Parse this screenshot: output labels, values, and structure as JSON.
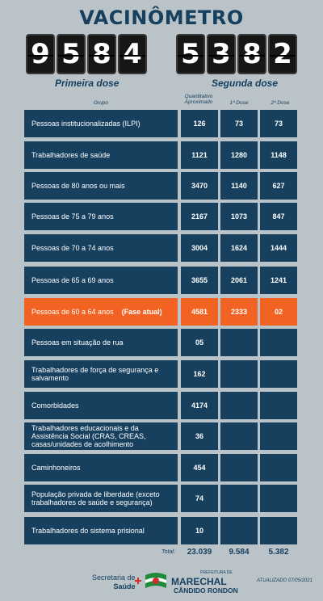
{
  "title": "VACINÔMETRO",
  "first_dose": {
    "digits": [
      "9",
      "5",
      "8",
      "4"
    ],
    "label": "Primeira dose"
  },
  "second_dose": {
    "digits": [
      "5",
      "3",
      "8",
      "2"
    ],
    "label": "Segunda dose"
  },
  "headers": {
    "group": "Grupo",
    "quantity": "Quantitativo Aproximado",
    "dose1": "1ª Dose",
    "dose2": "2ª Dose"
  },
  "rows": [
    {
      "group": "Pessoas institucionalizadas (ILPI)",
      "quantity": "126",
      "dose1": "73",
      "dose2": "73"
    },
    {
      "group": "Trabalhadores de saúde",
      "quantity": "1121",
      "dose1": "1280",
      "dose2": "1148"
    },
    {
      "group": "Pessoas de 80 anos ou mais",
      "quantity": "3470",
      "dose1": "1140",
      "dose2": "627"
    },
    {
      "group": "Pessoas de 75 a 79 anos",
      "quantity": "2167",
      "dose1": "1073",
      "dose2": "847"
    },
    {
      "group": "Pessoas de 70 a 74 anos",
      "quantity": "3004",
      "dose1": "1624",
      "dose2": "1444"
    },
    {
      "group": "Pessoas de 65 a 69 anos",
      "quantity": "3655",
      "dose1": "2061",
      "dose2": "1241"
    },
    {
      "group": "Pessoas de 60 a 64 anos",
      "fase": "(Fase atual)",
      "quantity": "4581",
      "dose1": "2333",
      "dose2": "02",
      "active": true
    },
    {
      "group": "Pessoas em situação de rua",
      "quantity": "05",
      "dose1": "",
      "dose2": ""
    },
    {
      "group": "Trabalhadores de força de segurança e salvamento",
      "quantity": "162",
      "dose1": "",
      "dose2": ""
    },
    {
      "group": "Comorbidades",
      "quantity": "4174",
      "dose1": "",
      "dose2": ""
    },
    {
      "group": "Trabalhadores educacionais e da Assistência Social (CRAS, CREAS, casas/unidades de acolhimento",
      "quantity": "36",
      "dose1": "",
      "dose2": ""
    },
    {
      "group": "Caminhoneiros",
      "quantity": "454",
      "dose1": "",
      "dose2": ""
    },
    {
      "group": "População privada de liberdade (exceto trabalhadores de saúde e segurança)",
      "quantity": "74",
      "dose1": "",
      "dose2": ""
    },
    {
      "group": "Trabalhadores do sistema prisional",
      "quantity": "10",
      "dose1": "",
      "dose2": ""
    }
  ],
  "totals": {
    "label": "Total:",
    "quantity": "23.039",
    "dose1": "9.584",
    "dose2": "5.382"
  },
  "footer": {
    "secretaria": "Secretaria de",
    "saude": "Saúde",
    "prefeitura": "PREFEITURA DE",
    "city": "MARECHAL",
    "city2": "CÂNDIDO RONDON",
    "updated": "ATUALIZADO 07/05/2021"
  },
  "colors": {
    "primary": "#17405f",
    "active": "#f26222",
    "background": "#b9c3c8"
  }
}
